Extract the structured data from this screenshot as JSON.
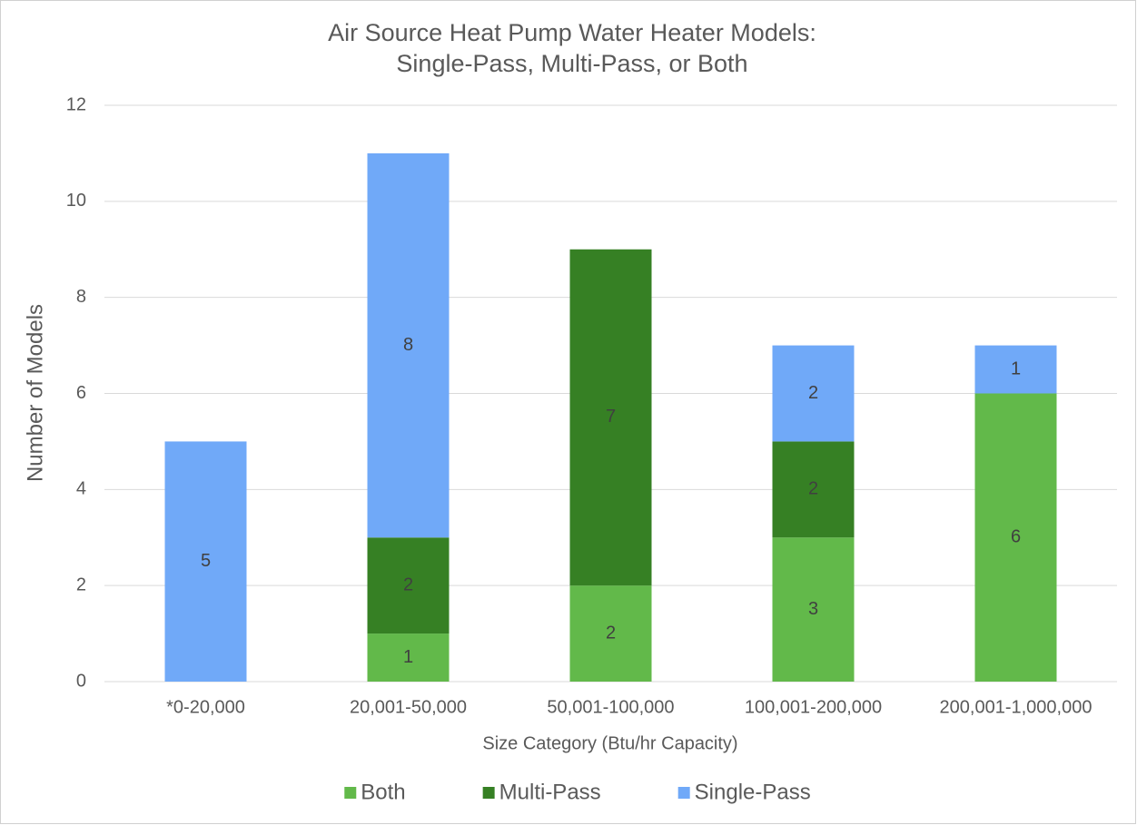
{
  "chart_data": {
    "type": "stacked_bar",
    "title": [
      "Air Source Heat Pump Water Heater Models:",
      "Single-Pass, Multi-Pass, or Both"
    ],
    "x_label": "Size Category (Btu/hr Capacity)",
    "y_label": "Number of Models",
    "categories": [
      "*0-20,000",
      "20,001-50,000",
      "50,001-100,000",
      "100,001-200,000",
      "200,001-1,000,000"
    ],
    "series": [
      {
        "name": "Both",
        "color": "#62b94a",
        "values": [
          null,
          1,
          2,
          3,
          6
        ]
      },
      {
        "name": "Multi-Pass",
        "color": "#368024",
        "values": [
          null,
          2,
          7,
          2,
          null
        ]
      },
      {
        "name": "Single-Pass",
        "color": "#70a9f8",
        "values": [
          5,
          8,
          null,
          2,
          1
        ]
      }
    ],
    "ylim": [
      0,
      12
    ],
    "yticks": [
      0,
      2,
      4,
      6,
      8,
      10,
      12
    ],
    "grid": true,
    "legend": "bottom"
  }
}
